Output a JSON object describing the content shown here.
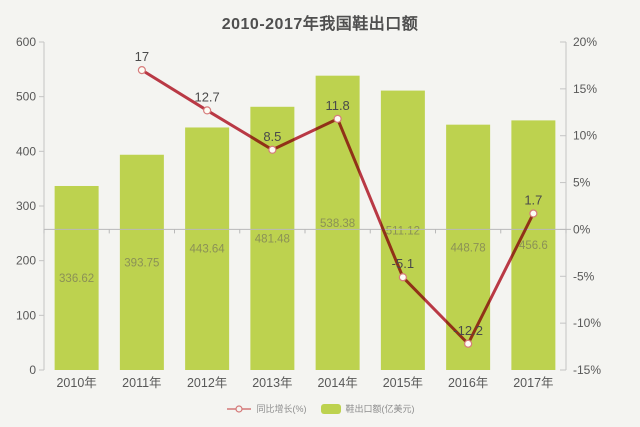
{
  "chart_data": {
    "type": "bar+line",
    "title": "2010-2017年我国鞋出口额",
    "categories": [
      "2010年",
      "2011年",
      "2012年",
      "2013年",
      "2014年",
      "2015年",
      "2016年",
      "2017年"
    ],
    "series": [
      {
        "name": "鞋出口额(亿美元)",
        "type": "bar",
        "axis": "left",
        "values": [
          336.62,
          393.75,
          443.64,
          481.48,
          538.38,
          511.12,
          448.78,
          456.6
        ]
      },
      {
        "name": "同比增长(%)",
        "type": "line",
        "axis": "right",
        "values": [
          null,
          17,
          12.7,
          8.5,
          11.8,
          -5.1,
          -12.2,
          1.7
        ]
      }
    ],
    "left_axis": {
      "min": 0,
      "max": 600,
      "step": 100,
      "ticks": [
        "0",
        "100",
        "200",
        "300",
        "400",
        "500",
        "600"
      ]
    },
    "right_axis": {
      "min": -15,
      "max": 20,
      "step": 5,
      "ticks": [
        "-15%",
        "-10%",
        "-5%",
        "0%",
        "5%",
        "10%",
        "15%",
        "20%"
      ]
    },
    "legend": [
      {
        "label": "同比增长(%)",
        "marker": "line-circle-icon"
      },
      {
        "label": "鞋出口额(亿美元)",
        "marker": "bar-swatch-icon"
      }
    ],
    "grid": "zero-line-only",
    "legend_position": "bottom-center"
  },
  "colors": {
    "background": "#f4f4f1",
    "bar": "#bdd24f",
    "bar_label": "#8b9156",
    "line": "#c23b49",
    "marker_fill": "#fdfcf5",
    "marker_stroke": "#d77c7c",
    "point_label": "#4a4a4a",
    "axis": "#c4c4c4",
    "zero_line": "#b9b9b9",
    "text": "#585858",
    "title": "#4f4f4f",
    "legend_line": "#d47878",
    "legend_text": "#8e8e8e"
  }
}
